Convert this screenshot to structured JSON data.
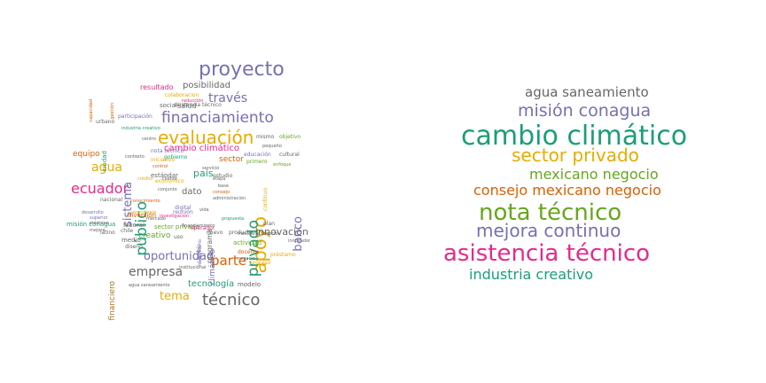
{
  "colors": {
    "teal": "#1b9e77",
    "orange": "#d95f02",
    "purple": "#7570b3",
    "magenta": "#e7298a",
    "green": "#66a61e",
    "gold": "#e6ab02",
    "brown": "#a6761d",
    "gray": "#666666"
  },
  "left_cloud": {
    "words": [
      {
        "text": "proyecto",
        "color": "purple",
        "weight": 20
      },
      {
        "text": "financiamiento",
        "color": "purple",
        "weight": 16
      },
      {
        "text": "evaluación",
        "color": "gold",
        "weight": 18
      },
      {
        "text": "apoyo",
        "color": "gold",
        "weight": 19
      },
      {
        "text": "público",
        "color": "teal",
        "weight": 16
      },
      {
        "text": "privado",
        "color": "teal",
        "weight": 16
      },
      {
        "text": "ecuador",
        "color": "magenta",
        "weight": 14
      },
      {
        "text": "técnico",
        "color": "gray",
        "weight": 16
      },
      {
        "text": "empresa",
        "color": "gray",
        "weight": 12
      },
      {
        "text": "parte",
        "color": "orange",
        "weight": 13
      },
      {
        "text": "través",
        "color": "purple",
        "weight": 12
      },
      {
        "text": "oportunidad",
        "color": "purple",
        "weight": 11
      },
      {
        "text": "tema",
        "color": "gold",
        "weight": 11
      },
      {
        "text": "agua",
        "color": "gold",
        "weight": 11
      },
      {
        "text": "banco",
        "color": "purple",
        "weight": 11
      },
      {
        "text": "sistema",
        "color": "purple",
        "weight": 11
      },
      {
        "text": "cambio climático",
        "color": "magenta",
        "weight": 9
      },
      {
        "text": "innovación",
        "color": "gray",
        "weight": 9
      },
      {
        "text": "tecnología",
        "color": "teal",
        "weight": 8
      },
      {
        "text": "sector",
        "color": "orange",
        "weight": 8
      },
      {
        "text": "país",
        "color": "teal",
        "weight": 9
      },
      {
        "text": "posibilidad",
        "color": "gray",
        "weight": 7
      },
      {
        "text": "resultado",
        "color": "magenta",
        "weight": 6
      },
      {
        "text": "salud",
        "color": "gray",
        "weight": 6
      },
      {
        "text": "social",
        "color": "gray",
        "weight": 5
      },
      {
        "text": "equipo",
        "color": "orange",
        "weight": 6
      },
      {
        "text": "dato",
        "color": "gray",
        "weight": 7
      },
      {
        "text": "creativo",
        "color": "green",
        "weight": 6
      },
      {
        "text": "programa",
        "color": "gray",
        "weight": 6
      },
      {
        "text": "climático",
        "color": "purple",
        "weight": 6
      },
      {
        "text": "financiero",
        "color": "brown",
        "weight": 6
      },
      {
        "text": "colaboracion",
        "color": "gold",
        "weight": 4
      },
      {
        "text": "asistencia técnico",
        "color": "gray",
        "weight": 4
      },
      {
        "text": "participación",
        "color": "purple",
        "weight": 4
      },
      {
        "text": "ciudad",
        "color": "teal",
        "weight": 4
      },
      {
        "text": "urbano",
        "color": "gray",
        "weight": 4
      },
      {
        "text": "gobierno",
        "color": "teal",
        "weight": 4
      },
      {
        "text": "primero",
        "color": "green",
        "weight": 4
      },
      {
        "text": "estudio",
        "color": "gray",
        "weight": 4
      },
      {
        "text": "continuo",
        "color": "gold",
        "weight": 4
      },
      {
        "text": "inversión",
        "color": "orange",
        "weight": 4
      },
      {
        "text": "digital",
        "color": "purple",
        "weight": 4
      },
      {
        "text": "reunión",
        "color": "purple",
        "weight": 4
      },
      {
        "text": "nacional",
        "color": "gray",
        "weight": 4
      },
      {
        "text": "misión conagua",
        "color": "teal",
        "weight": 4
      },
      {
        "text": "latino",
        "color": "gray",
        "weight": 4
      },
      {
        "text": "medio",
        "color": "gray",
        "weight": 4
      },
      {
        "text": "chile",
        "color": "gray",
        "weight": 4
      },
      {
        "text": "laboral",
        "color": "gray",
        "weight": 4
      },
      {
        "text": "uso",
        "color": "gray",
        "weight": 4
      },
      {
        "text": "nuevo",
        "color": "gray",
        "weight": 4
      },
      {
        "text": "producto",
        "color": "gray",
        "weight": 4
      },
      {
        "text": "plan",
        "color": "gray",
        "weight": 4
      },
      {
        "text": "actividad",
        "color": "green",
        "weight": 4
      },
      {
        "text": "cambio",
        "color": "purple",
        "weight": 4
      },
      {
        "text": "docente",
        "color": "orange",
        "weight": 4
      },
      {
        "text": "proceso",
        "color": "gold",
        "weight": 4
      },
      {
        "text": "préstamo",
        "color": "gold",
        "weight": 4
      },
      {
        "text": "modelo",
        "color": "gray",
        "weight": 4
      },
      {
        "text": "mismo",
        "color": "gray",
        "weight": 4
      },
      {
        "text": "objetivo",
        "color": "green",
        "weight": 4
      },
      {
        "text": "educación",
        "color": "purple",
        "weight": 4
      },
      {
        "text": "cultural",
        "color": "gray",
        "weight": 4
      },
      {
        "text": "nota técnico",
        "color": "purple",
        "weight": 4
      },
      {
        "text": "estándar",
        "color": "gray",
        "weight": 4
      },
      {
        "text": "económico",
        "color": "gold",
        "weight": 4
      },
      {
        "text": "diseño",
        "color": "gray",
        "weight": 4
      },
      {
        "text": "sector privado",
        "color": "green",
        "weight": 4
      },
      {
        "text": "agua saneamiento",
        "color": "gray",
        "weight": 3
      },
      {
        "text": "operador",
        "color": "magenta",
        "weight": 4
      },
      {
        "text": "desarrollo",
        "color": "purple",
        "weight": 3
      },
      {
        "text": "iniciativo",
        "color": "gold",
        "weight": 3
      },
      {
        "text": "humanitario",
        "color": "purple",
        "weight": 3
      },
      {
        "text": "aprendizaje",
        "color": "gold",
        "weight": 3
      },
      {
        "text": "crédito",
        "color": "gold",
        "weight": 3
      },
      {
        "text": "mercado",
        "color": "gray",
        "weight": 3
      },
      {
        "text": "innovador",
        "color": "gray",
        "weight": 3
      },
      {
        "text": "mexicano negocio",
        "color": "gray",
        "weight": 3
      },
      {
        "text": "pequeño",
        "color": "gray",
        "weight": 3
      },
      {
        "text": "propuesta",
        "color": "teal",
        "weight": 3
      },
      {
        "text": "enfoque",
        "color": "green",
        "weight": 3
      },
      {
        "text": "administración",
        "color": "gray",
        "weight": 3
      },
      {
        "text": "capacidad",
        "color": "orange",
        "weight": 3
      },
      {
        "text": "gestión",
        "color": "orange",
        "weight": 3
      },
      {
        "text": "etapa",
        "color": "gray",
        "weight": 3
      },
      {
        "text": "base",
        "color": "gray",
        "weight": 3
      },
      {
        "text": "control",
        "color": "orange",
        "weight": 3
      },
      {
        "text": "mejora",
        "color": "gray",
        "weight": 3
      },
      {
        "text": "investigación",
        "color": "magenta",
        "weight": 3
      },
      {
        "text": "conjunto",
        "color": "gray",
        "weight": 3
      },
      {
        "text": "centro",
        "color": "gray",
        "weight": 3
      },
      {
        "text": "industria creativo",
        "color": "teal",
        "weight": 3
      },
      {
        "text": "reducción",
        "color": "magenta",
        "weight": 3
      },
      {
        "text": "contexto",
        "color": "gray",
        "weight": 3
      },
      {
        "text": "servicio",
        "color": "gray",
        "weight": 3
      },
      {
        "text": "eléctrico",
        "color": "gray",
        "weight": 3
      },
      {
        "text": "superior",
        "color": "purple",
        "weight": 3
      },
      {
        "text": "vida",
        "color": "gray",
        "weight": 3
      },
      {
        "text": "negocio",
        "color": "gray",
        "weight": 3
      },
      {
        "text": "conocimiento",
        "color": "orange",
        "weight": 3
      },
      {
        "text": "institucional",
        "color": "gray",
        "weight": 3
      },
      {
        "text": "financiamiento",
        "color": "gray",
        "weight": 3
      },
      {
        "text": "consejo",
        "color": "orange",
        "weight": 3
      },
      {
        "text": "cliente",
        "color": "gray",
        "weight": 3
      }
    ]
  },
  "right_cloud": {
    "words": [
      {
        "text": "agua saneamiento",
        "color": "gray",
        "weight": 4
      },
      {
        "text": "misión conagua",
        "color": "purple",
        "weight": 5
      },
      {
        "text": "cambio climático",
        "color": "teal",
        "weight": 10
      },
      {
        "text": "sector privado",
        "color": "gold",
        "weight": 5
      },
      {
        "text": "mexicano negocio",
        "color": "green",
        "weight": 4
      },
      {
        "text": "consejo mexicano negocio",
        "color": "orange",
        "weight": 4
      },
      {
        "text": "nota técnico",
        "color": "green",
        "weight": 7
      },
      {
        "text": "mejora continuo",
        "color": "purple",
        "weight": 5
      },
      {
        "text": "asistencia técnico",
        "color": "magenta",
        "weight": 7
      },
      {
        "text": "industria creativo",
        "color": "teal",
        "weight": 4
      }
    ]
  }
}
